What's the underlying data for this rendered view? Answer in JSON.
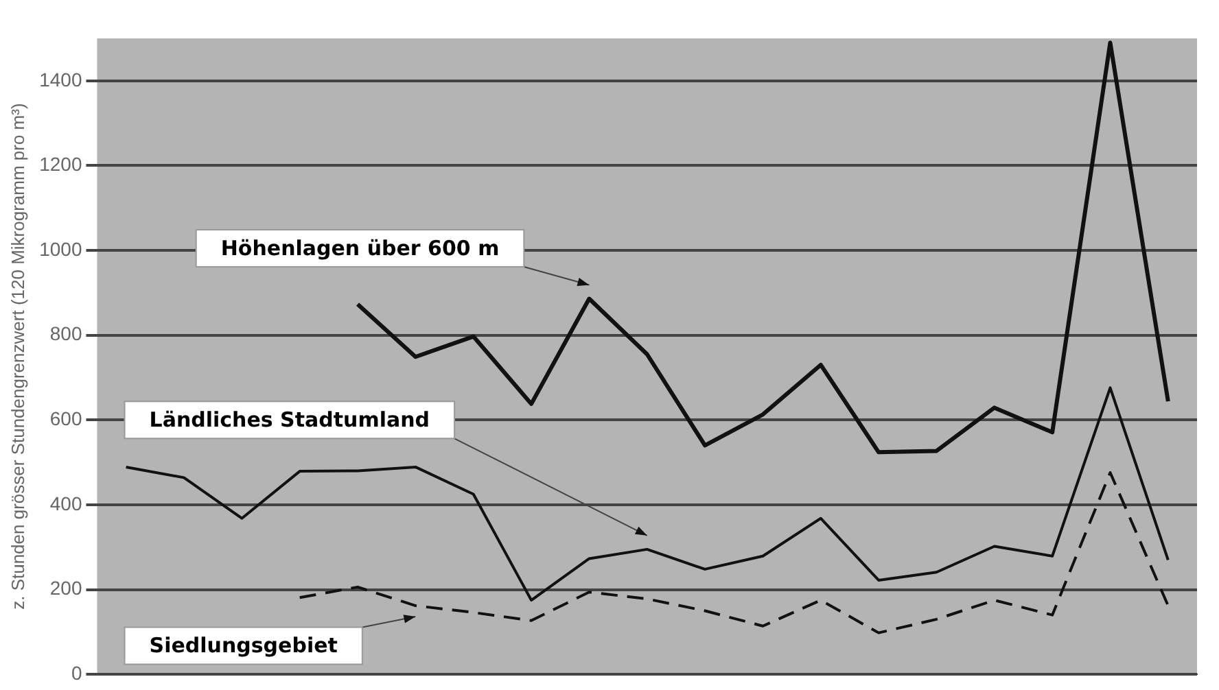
{
  "chart_data": {
    "type": "line",
    "ylabel": "z. Stunden grösser Stundengrenzwert (120 Mikrogramm pro m³)",
    "categories": [
      null,
      null,
      null,
      null,
      null,
      null,
      null,
      null,
      null,
      null,
      null,
      null,
      null,
      null,
      null,
      null,
      null,
      null,
      null
    ],
    "series": [
      {
        "name": "Höhenlagen über 600 m",
        "color": "#111111",
        "line_style": "solid",
        "values": [
          null,
          null,
          null,
          null,
          873,
          749,
          797,
          638,
          886,
          755,
          540,
          613,
          730,
          524,
          527,
          629,
          571,
          1490,
          644
        ]
      },
      {
        "name": "Ländliches Stadtumland",
        "color": "#111111",
        "line_style": "solid",
        "values": [
          489,
          464,
          368,
          479,
          480,
          489,
          425,
          175,
          273,
          295,
          248,
          279,
          368,
          222,
          241,
          302,
          279,
          676,
          270
        ]
      },
      {
        "name": "Siedlungsgebiet",
        "color": "#111111",
        "line_style": "dashed",
        "values": [
          null,
          null,
          null,
          181,
          206,
          162,
          146,
          127,
          194,
          178,
          150,
          114,
          175,
          98,
          130,
          175,
          140,
          476,
          162
        ]
      }
    ],
    "ylim": [
      0,
      1500
    ],
    "yticks": [
      0,
      200,
      400,
      600,
      800,
      1000,
      1200,
      1400
    ],
    "grid": "y",
    "legend": false,
    "tick_labels": "y",
    "marker": "none"
  }
}
